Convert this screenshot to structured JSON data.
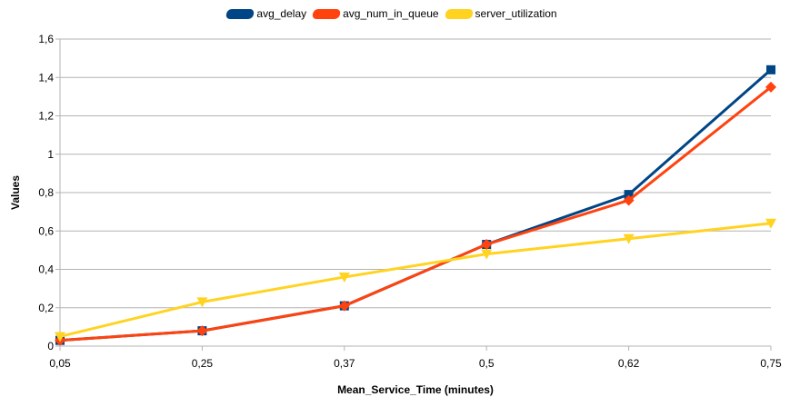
{
  "chart_data": {
    "type": "line",
    "categories": [
      "0,05",
      "0,25",
      "0,37",
      "0,5",
      "0,62",
      "0,75"
    ],
    "series": [
      {
        "name": "avg_delay",
        "color": "#004586",
        "marker": "square",
        "values": [
          0.03,
          0.08,
          0.21,
          0.53,
          0.79,
          1.44
        ]
      },
      {
        "name": "avg_num_in_queue",
        "color": "#ff420e",
        "marker": "diamond",
        "values": [
          0.03,
          0.08,
          0.21,
          0.53,
          0.76,
          1.35
        ]
      },
      {
        "name": "server_utilization",
        "color": "#ffd320",
        "marker": "triangle-down",
        "values": [
          0.05,
          0.23,
          0.36,
          0.48,
          0.56,
          0.64
        ]
      }
    ],
    "title": "",
    "xlabel": "Mean_Service_Time (minutes)",
    "ylabel": "Values",
    "ylim": [
      0,
      1.6
    ],
    "yticks": [
      "0",
      "0,2",
      "0,4",
      "0,6",
      "0,8",
      "1",
      "1,2",
      "1,4",
      "1,6"
    ],
    "grid": "horizontal",
    "legend_position": "top-center"
  }
}
